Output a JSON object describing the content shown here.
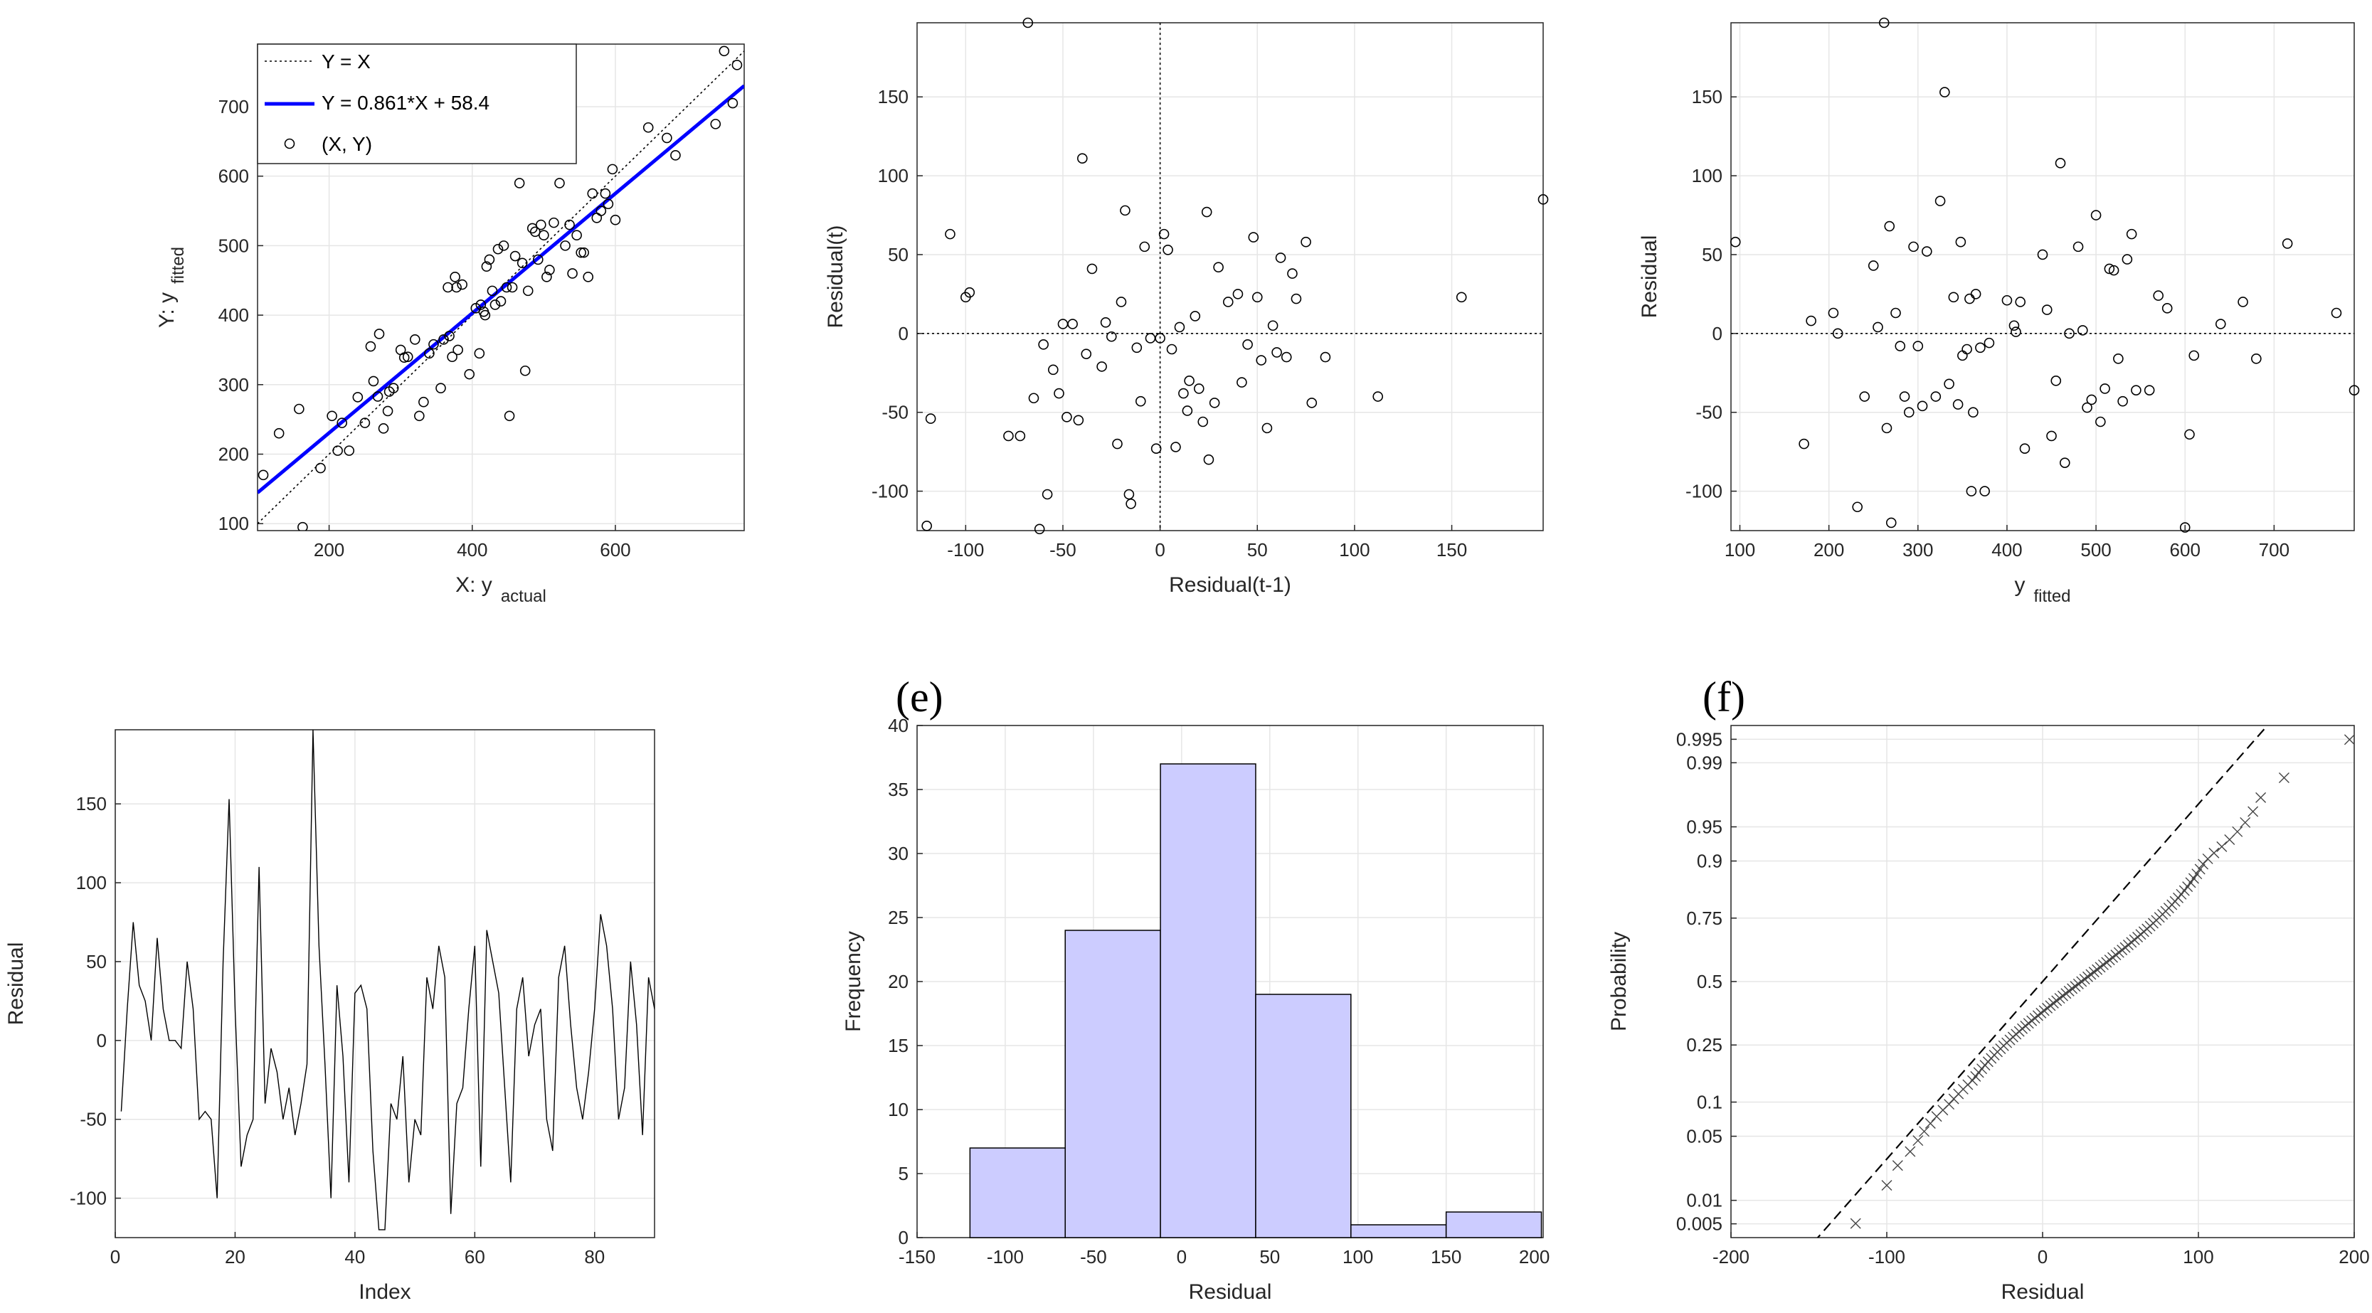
{
  "colors": {
    "fit_line": "#0000ff",
    "hist_fill": "#ccccff",
    "axis": "#262626",
    "grid": "#e6e6e6",
    "marker": "#000000"
  },
  "chart_data": [
    {
      "id": "a",
      "type": "scatter",
      "xlabel": "X: y",
      "xlabel_sub": "actual",
      "ylabel": "Y: y",
      "ylabel_sub": "fitted",
      "xlim": [
        100,
        780
      ],
      "ylim": [
        90,
        790
      ],
      "xticks": [
        200,
        400,
        600
      ],
      "yticks": [
        100,
        200,
        300,
        400,
        500,
        600,
        700
      ],
      "legend": {
        "loc": "top-left",
        "entries": [
          "Y = X",
          "Y = 0.861*X + 58.4",
          "(X, Y)"
        ]
      },
      "fit": {
        "slope": 0.861,
        "intercept": 58.4
      },
      "points_x": [
        108,
        130,
        158,
        163,
        188,
        204,
        212,
        218,
        228,
        240,
        250,
        258,
        262,
        268,
        270,
        276,
        282,
        284,
        290,
        300,
        305,
        310,
        320,
        326,
        332,
        340,
        346,
        356,
        360,
        366,
        368,
        372,
        376,
        378,
        380,
        386,
        396,
        405,
        410,
        412,
        416,
        418,
        420,
        424,
        428,
        432,
        436,
        440,
        444,
        448,
        452,
        456,
        460,
        466,
        470,
        474,
        478,
        484,
        488,
        492,
        496,
        500,
        504,
        508,
        514,
        522,
        530,
        536,
        540,
        546,
        552,
        556,
        562,
        568,
        574,
        580,
        586,
        590,
        596,
        600,
        646,
        672,
        684,
        740,
        752,
        764,
        770
      ],
      "points_y": [
        170,
        230,
        265,
        95,
        180,
        255,
        205,
        245,
        205,
        282,
        245,
        355,
        305,
        283,
        373,
        237,
        262,
        290,
        295,
        350,
        339,
        340,
        365,
        255,
        275,
        345,
        358,
        295,
        365,
        440,
        370,
        340,
        455,
        440,
        350,
        444,
        315,
        410,
        345,
        415,
        405,
        400,
        470,
        480,
        435,
        415,
        495,
        420,
        500,
        440,
        255,
        440,
        485,
        590,
        475,
        320,
        435,
        525,
        520,
        480,
        530,
        515,
        455,
        465,
        533,
        590,
        500,
        530,
        460,
        515,
        490,
        490,
        455,
        575,
        540,
        550,
        575,
        560,
        610,
        537,
        670,
        655,
        630,
        675,
        780,
        705,
        760
      ]
    },
    {
      "id": "b",
      "type": "scatter",
      "xlabel": "Residual(t-1)",
      "ylabel": "Residual(t)",
      "xlim": [
        -125,
        197
      ],
      "ylim": [
        -125,
        197
      ],
      "xticks": [
        -100,
        -50,
        0,
        50,
        100,
        150
      ],
      "yticks": [
        -100,
        -50,
        0,
        50,
        100,
        150
      ],
      "points_x": [
        -120,
        -118,
        -108,
        -100,
        -98,
        -78,
        -72,
        -68,
        -65,
        -62,
        -60,
        -58,
        -55,
        -52,
        -50,
        -48,
        -45,
        -42,
        -40,
        -38,
        -35,
        -30,
        -28,
        -25,
        -22,
        -20,
        -18,
        -16,
        -15,
        -12,
        -10,
        -8,
        -5,
        -2,
        0,
        2,
        4,
        6,
        8,
        10,
        12,
        14,
        15,
        18,
        20,
        22,
        24,
        25,
        28,
        30,
        35,
        40,
        42,
        45,
        48,
        50,
        52,
        55,
        58,
        60,
        62,
        65,
        68,
        70,
        75,
        78,
        85,
        112,
        155,
        197
      ],
      "points_y": [
        -122,
        -54,
        63,
        23,
        26,
        -65,
        -65,
        197,
        -41,
        -124,
        -7,
        -102,
        -23,
        -38,
        6,
        -53,
        6,
        -55,
        111,
        -13,
        41,
        -21,
        7,
        -2,
        -70,
        20,
        78,
        -102,
        -108,
        -9,
        -43,
        55,
        -3,
        -73,
        -3,
        63,
        53,
        -10,
        -72,
        4,
        -38,
        -49,
        -30,
        11,
        -35,
        -56,
        77,
        -80,
        -44,
        42,
        20,
        25,
        -31,
        -7,
        61,
        23,
        -17,
        -60,
        5,
        -12,
        48,
        -15,
        38,
        22,
        58,
        -44,
        -15,
        -40,
        23,
        85
      ]
    },
    {
      "id": "c",
      "type": "scatter",
      "xlabel": "y",
      "xlabel_sub": "fitted",
      "ylabel": "Residual",
      "xlim": [
        90,
        790
      ],
      "ylim": [
        -125,
        197
      ],
      "xticks": [
        100,
        200,
        300,
        400,
        500,
        600,
        700
      ],
      "yticks": [
        -100,
        -50,
        0,
        50,
        100,
        150
      ],
      "points_x": [
        95,
        172,
        180,
        205,
        210,
        232,
        240,
        250,
        255,
        262,
        265,
        268,
        270,
        275,
        280,
        285,
        290,
        295,
        300,
        305,
        310,
        320,
        325,
        330,
        335,
        340,
        345,
        348,
        350,
        355,
        358,
        360,
        362,
        365,
        370,
        375,
        380,
        400,
        408,
        410,
        415,
        420,
        440,
        445,
        450,
        455,
        460,
        465,
        470,
        480,
        485,
        490,
        495,
        500,
        505,
        510,
        515,
        520,
        525,
        530,
        535,
        540,
        545,
        560,
        570,
        580,
        600,
        605,
        610,
        640,
        665,
        680,
        715,
        770,
        790
      ],
      "points_y": [
        58,
        -70,
        8,
        13,
        0,
        -110,
        -40,
        43,
        4,
        197,
        -60,
        68,
        -120,
        13,
        -8,
        -40,
        -50,
        55,
        -8,
        -46,
        52,
        -40,
        84,
        153,
        -32,
        23,
        -45,
        58,
        -14,
        -10,
        22,
        -100,
        -50,
        25,
        -9,
        -100,
        -6,
        21,
        5,
        1,
        20,
        -73,
        50,
        15,
        -65,
        -30,
        108,
        -82,
        0,
        55,
        2,
        -47,
        -42,
        75,
        -56,
        -35,
        41,
        40,
        -16,
        -43,
        47,
        63,
        -36,
        -36,
        24,
        16,
        -123,
        -64,
        -14,
        6,
        20,
        -16,
        57,
        13,
        -36
      ]
    },
    {
      "id": "d",
      "type": "line",
      "xlabel": "Index",
      "ylabel": "Residual",
      "xlim": [
        0,
        90
      ],
      "ylim": [
        -125,
        197
      ],
      "xticks": [
        0,
        20,
        40,
        60,
        80
      ],
      "yticks": [
        -100,
        -50,
        0,
        50,
        100,
        150
      ],
      "y": [
        -45,
        20,
        75,
        35,
        25,
        0,
        65,
        20,
        0,
        0,
        -5,
        50,
        20,
        -50,
        -45,
        -50,
        -100,
        50,
        153,
        20,
        -80,
        -60,
        -50,
        110,
        -40,
        -5,
        -20,
        -50,
        -30,
        -60,
        -40,
        -15,
        197,
        60,
        -15,
        -100,
        35,
        -10,
        -90,
        30,
        35,
        20,
        -70,
        -120,
        -120,
        -40,
        -50,
        -10,
        -90,
        -50,
        -60,
        40,
        20,
        60,
        40,
        -110,
        -40,
        -30,
        20,
        60,
        -80,
        70,
        50,
        30,
        -30,
        -90,
        20,
        40,
        -10,
        10,
        20,
        -50,
        -70,
        40,
        60,
        10,
        -30,
        -50,
        -20,
        20,
        80,
        60,
        20,
        -50,
        -30,
        50,
        10,
        -60,
        40,
        20
      ]
    },
    {
      "id": "e",
      "type": "bar",
      "title": "(e)",
      "xlabel": "Residual",
      "ylabel": "Frequency",
      "xlim": [
        -150,
        205
      ],
      "ylim": [
        0,
        40
      ],
      "xticks": [
        -150,
        -100,
        -50,
        0,
        50,
        100,
        150,
        200
      ],
      "yticks": [
        0,
        5,
        10,
        15,
        20,
        25,
        30,
        35,
        40
      ],
      "bin_edges": [
        -120,
        -66,
        -12,
        42,
        96,
        150,
        204
      ],
      "counts": [
        7,
        24,
        37,
        19,
        1,
        2
      ]
    },
    {
      "id": "f",
      "type": "scatter",
      "title": "(f)",
      "xlabel": "Residual",
      "ylabel": "Probability",
      "xlim": [
        -200,
        200
      ],
      "xticks": [
        -200,
        -100,
        0,
        100,
        200
      ],
      "ytick_probs": [
        0.005,
        0.01,
        0.05,
        0.1,
        0.25,
        0.5,
        0.75,
        0.9,
        0.95,
        0.99,
        0.995
      ],
      "ytick_labels": [
        "0.005",
        "0.01",
        "0.05",
        "0.1",
        "0.25",
        "0.5",
        "0.75",
        "0.9",
        "0.95",
        "0.99",
        "0.995"
      ],
      "fit_mu": 0,
      "fit_sigma": 53,
      "points_x": [
        -120,
        -100,
        -93,
        -85,
        -80,
        -76,
        -72,
        -68,
        -64,
        -60,
        -57,
        -54,
        -51,
        -48,
        -45,
        -43,
        -41,
        -39,
        -37,
        -35,
        -33,
        -31,
        -29,
        -27,
        -25,
        -23,
        -21,
        -19,
        -17,
        -15,
        -13,
        -11,
        -9,
        -7,
        -5,
        -3,
        -1,
        1,
        3,
        5,
        7,
        9,
        11,
        13,
        15,
        17,
        19,
        21,
        23,
        25,
        27,
        29,
        31,
        33,
        35,
        37,
        39,
        41,
        43,
        45,
        47,
        49,
        51,
        53,
        55,
        57,
        59,
        61,
        63,
        65,
        67,
        69,
        71,
        73,
        75,
        77,
        79,
        81,
        83,
        85,
        87,
        89,
        91,
        93,
        95,
        97,
        99,
        101,
        103,
        106,
        110,
        115,
        120,
        125,
        130,
        135,
        140,
        155,
        197
      ]
    }
  ]
}
